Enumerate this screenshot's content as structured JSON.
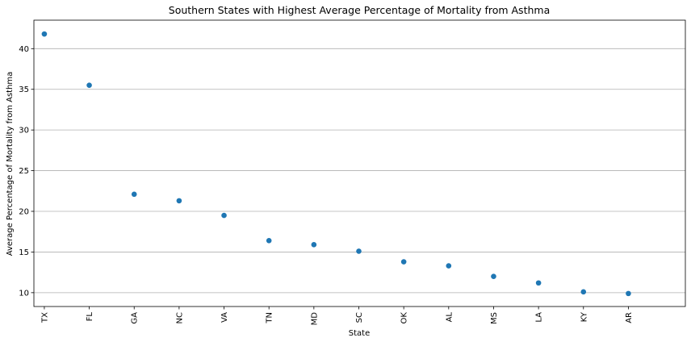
{
  "chart_data": {
    "type": "scatter",
    "title": "Southern States with Highest Average Percentage of Mortality from Asthma",
    "xlabel": "State",
    "ylabel": "Average Percentage of Mortality from Asthma",
    "categories": [
      "TX",
      "FL",
      "GA",
      "NC",
      "VA",
      "TN",
      "MD",
      "SC",
      "OK",
      "AL",
      "MS",
      "LA",
      "KY",
      "AR"
    ],
    "values": [
      41.8,
      35.5,
      22.1,
      21.3,
      19.5,
      16.4,
      15.9,
      15.1,
      13.8,
      13.3,
      12.0,
      11.2,
      10.1,
      9.9
    ],
    "ylim": [
      8.3,
      43.5
    ],
    "yticks": [
      10,
      15,
      20,
      25,
      30,
      35,
      40
    ],
    "grid": "horizontal",
    "colors": {
      "marker": "#1f77b4",
      "grid": "#b0b0b0"
    }
  }
}
